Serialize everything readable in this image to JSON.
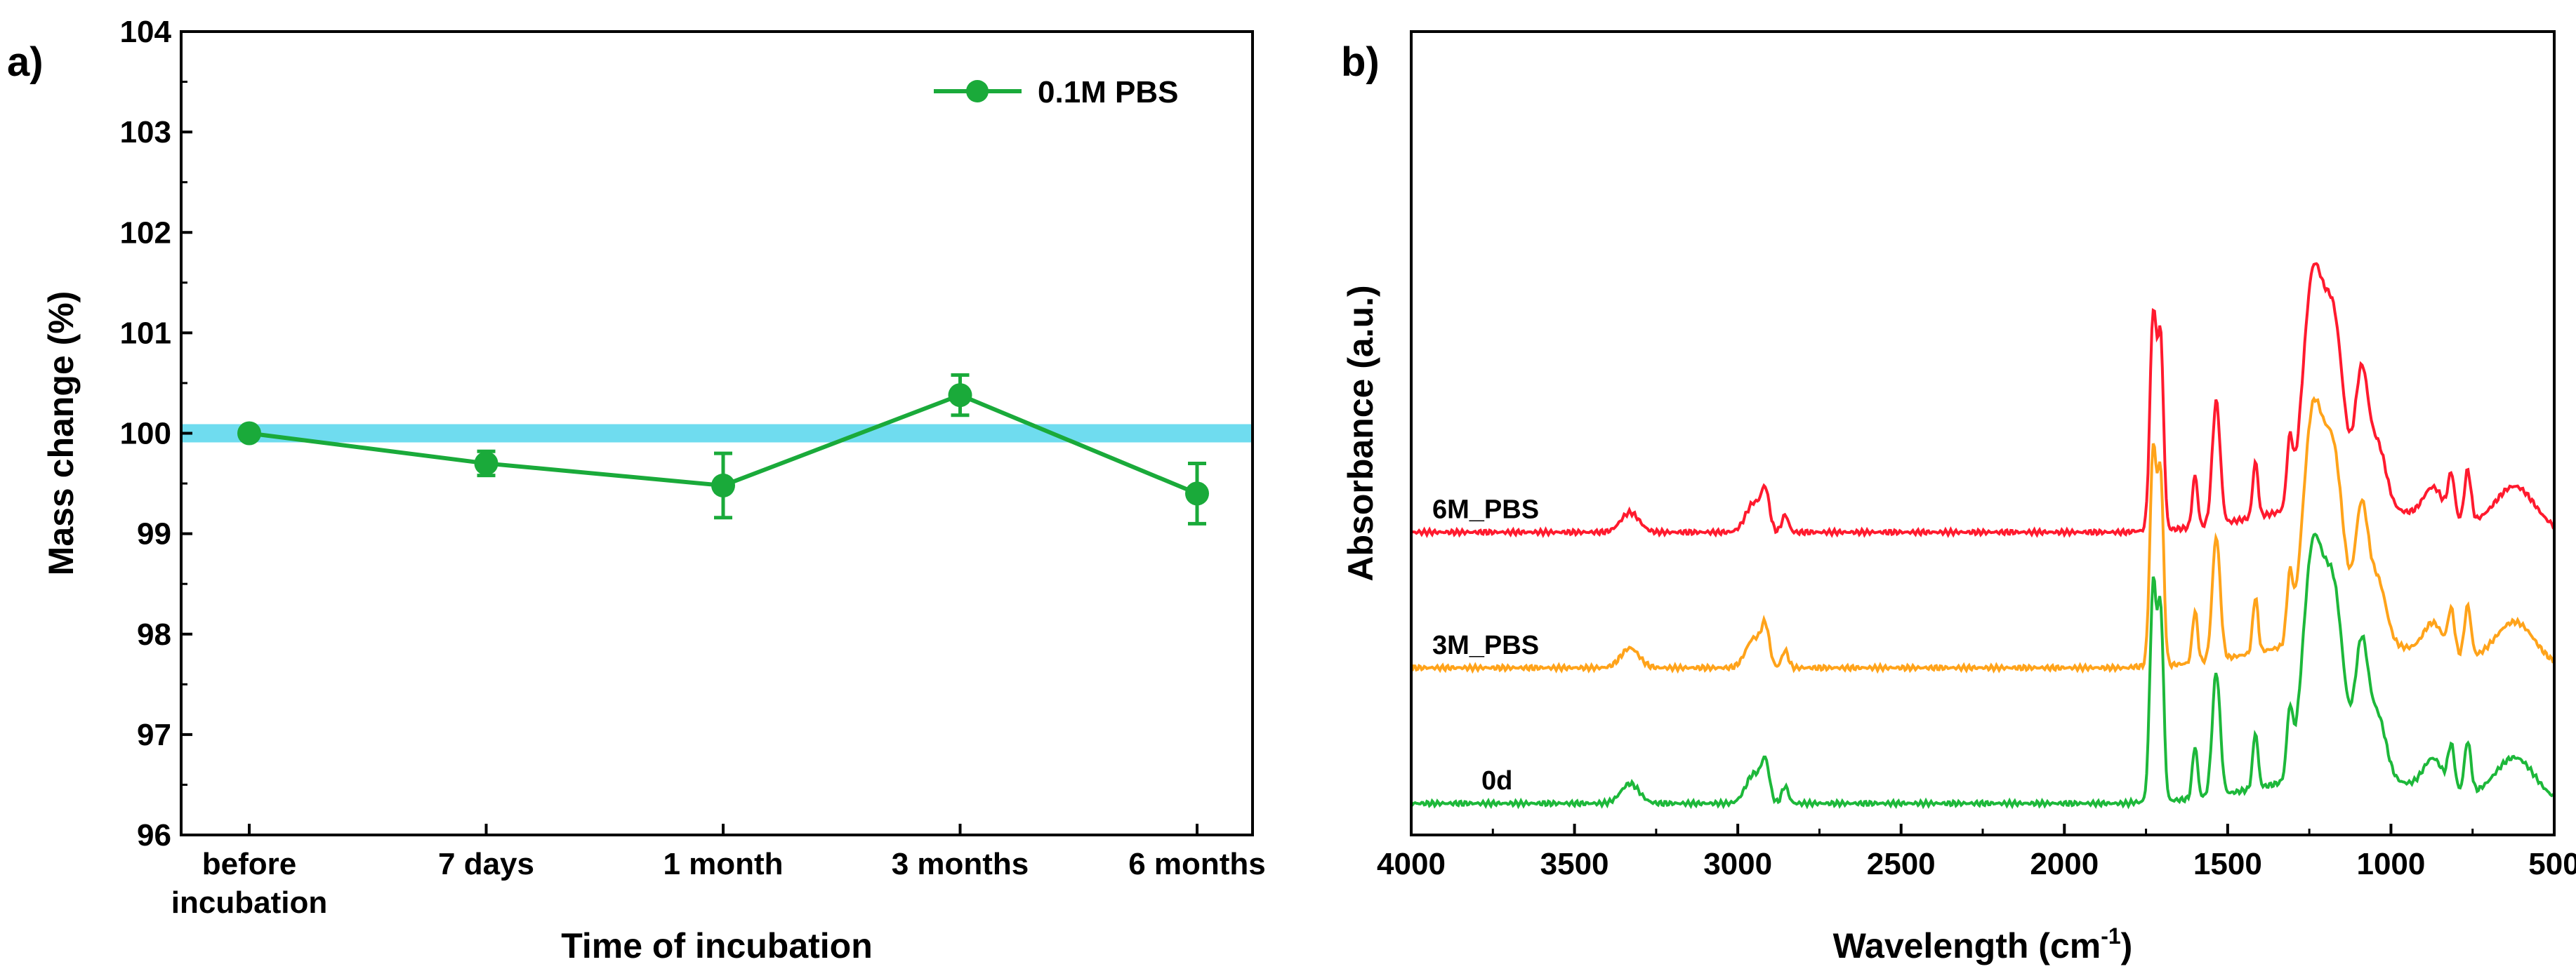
{
  "chart_data": [
    {
      "panel": "a)",
      "type": "line",
      "title": "",
      "xlabel": "Time of incubation",
      "ylabel": "Mass change (%)",
      "ylim": [
        96,
        104
      ],
      "yticks": [
        96,
        97,
        98,
        99,
        100,
        101,
        102,
        103,
        104
      ],
      "categories": [
        [
          "before",
          "incubation"
        ],
        [
          "7 days"
        ],
        [
          "1 month"
        ],
        [
          "3 months"
        ],
        [
          "6 months"
        ]
      ],
      "reference_band": {
        "y": 100,
        "color": "#6fdcef"
      },
      "legend_position": "top-right",
      "series": [
        {
          "name": "0.1M PBS",
          "color": "#1aaa3a",
          "values": [
            100.0,
            99.7,
            99.48,
            100.38,
            99.4
          ],
          "errors": [
            0.0,
            0.12,
            0.32,
            0.2,
            0.3
          ]
        }
      ]
    },
    {
      "panel": "b)",
      "type": "line",
      "title": "",
      "xlabel": "Wavelength (cm",
      "xlabel_sup": "-1",
      "xlabel_close": ")",
      "ylabel": "Absorbance (a.u.)",
      "xlim": [
        4000,
        500
      ],
      "xticks": [
        4000,
        3500,
        3000,
        2500,
        2000,
        1500,
        1000,
        500
      ],
      "series": [
        {
          "name": "6M_PBS",
          "color": "#ff1a2e",
          "offset": 2.0,
          "peaks": [
            [
              3330,
              0.16,
              28
            ],
            [
              2950,
              0.24,
              25
            ],
            [
              2915,
              0.28,
              12
            ],
            [
              2855,
              0.14,
              10
            ],
            [
              1728,
              1.75,
              10
            ],
            [
              1705,
              1.5,
              9
            ],
            [
              1600,
              0.42,
              8
            ],
            [
              1535,
              1.0,
              12
            ],
            [
              1415,
              0.45,
              8
            ],
            [
              1310,
              0.5,
              9
            ],
            [
              1240,
              1.8,
              30
            ],
            [
              1175,
              1.45,
              30
            ],
            [
              1090,
              1.05,
              20
            ],
            [
              1040,
              0.5,
              25
            ],
            [
              870,
              0.25,
              30
            ],
            [
              815,
              0.35,
              10
            ],
            [
              765,
              0.42,
              10
            ],
            [
              620,
              0.35,
              60
            ]
          ]
        },
        {
          "name": "3M_PBS",
          "color": "#ffa31a",
          "offset": 1.0,
          "peaks": [
            [
              3330,
              0.16,
              28
            ],
            [
              2950,
              0.24,
              25
            ],
            [
              2915,
              0.28,
              12
            ],
            [
              2855,
              0.14,
              10
            ],
            [
              1728,
              1.75,
              10
            ],
            [
              1705,
              1.5,
              9
            ],
            [
              1600,
              0.42,
              8
            ],
            [
              1535,
              1.0,
              12
            ],
            [
              1415,
              0.45,
              8
            ],
            [
              1310,
              0.5,
              9
            ],
            [
              1240,
              1.8,
              30
            ],
            [
              1175,
              1.45,
              30
            ],
            [
              1090,
              1.05,
              20
            ],
            [
              1040,
              0.5,
              25
            ],
            [
              870,
              0.25,
              30
            ],
            [
              815,
              0.35,
              10
            ],
            [
              765,
              0.42,
              10
            ],
            [
              620,
              0.35,
              60
            ]
          ]
        },
        {
          "name": "0d",
          "color": "#1db83a",
          "offset": 0.0,
          "peaks": [
            [
              3330,
              0.16,
              28
            ],
            [
              2950,
              0.24,
              25
            ],
            [
              2915,
              0.28,
              12
            ],
            [
              2855,
              0.14,
              10
            ],
            [
              1728,
              1.75,
              10
            ],
            [
              1705,
              1.5,
              9
            ],
            [
              1600,
              0.42,
              8
            ],
            [
              1535,
              1.0,
              12
            ],
            [
              1415,
              0.45,
              8
            ],
            [
              1310,
              0.5,
              9
            ],
            [
              1240,
              1.8,
              30
            ],
            [
              1175,
              1.45,
              30
            ],
            [
              1090,
              1.05,
              20
            ],
            [
              1040,
              0.5,
              25
            ],
            [
              870,
              0.25,
              30
            ],
            [
              815,
              0.35,
              10
            ],
            [
              765,
              0.42,
              10
            ],
            [
              620,
              0.35,
              60
            ]
          ]
        }
      ]
    }
  ]
}
